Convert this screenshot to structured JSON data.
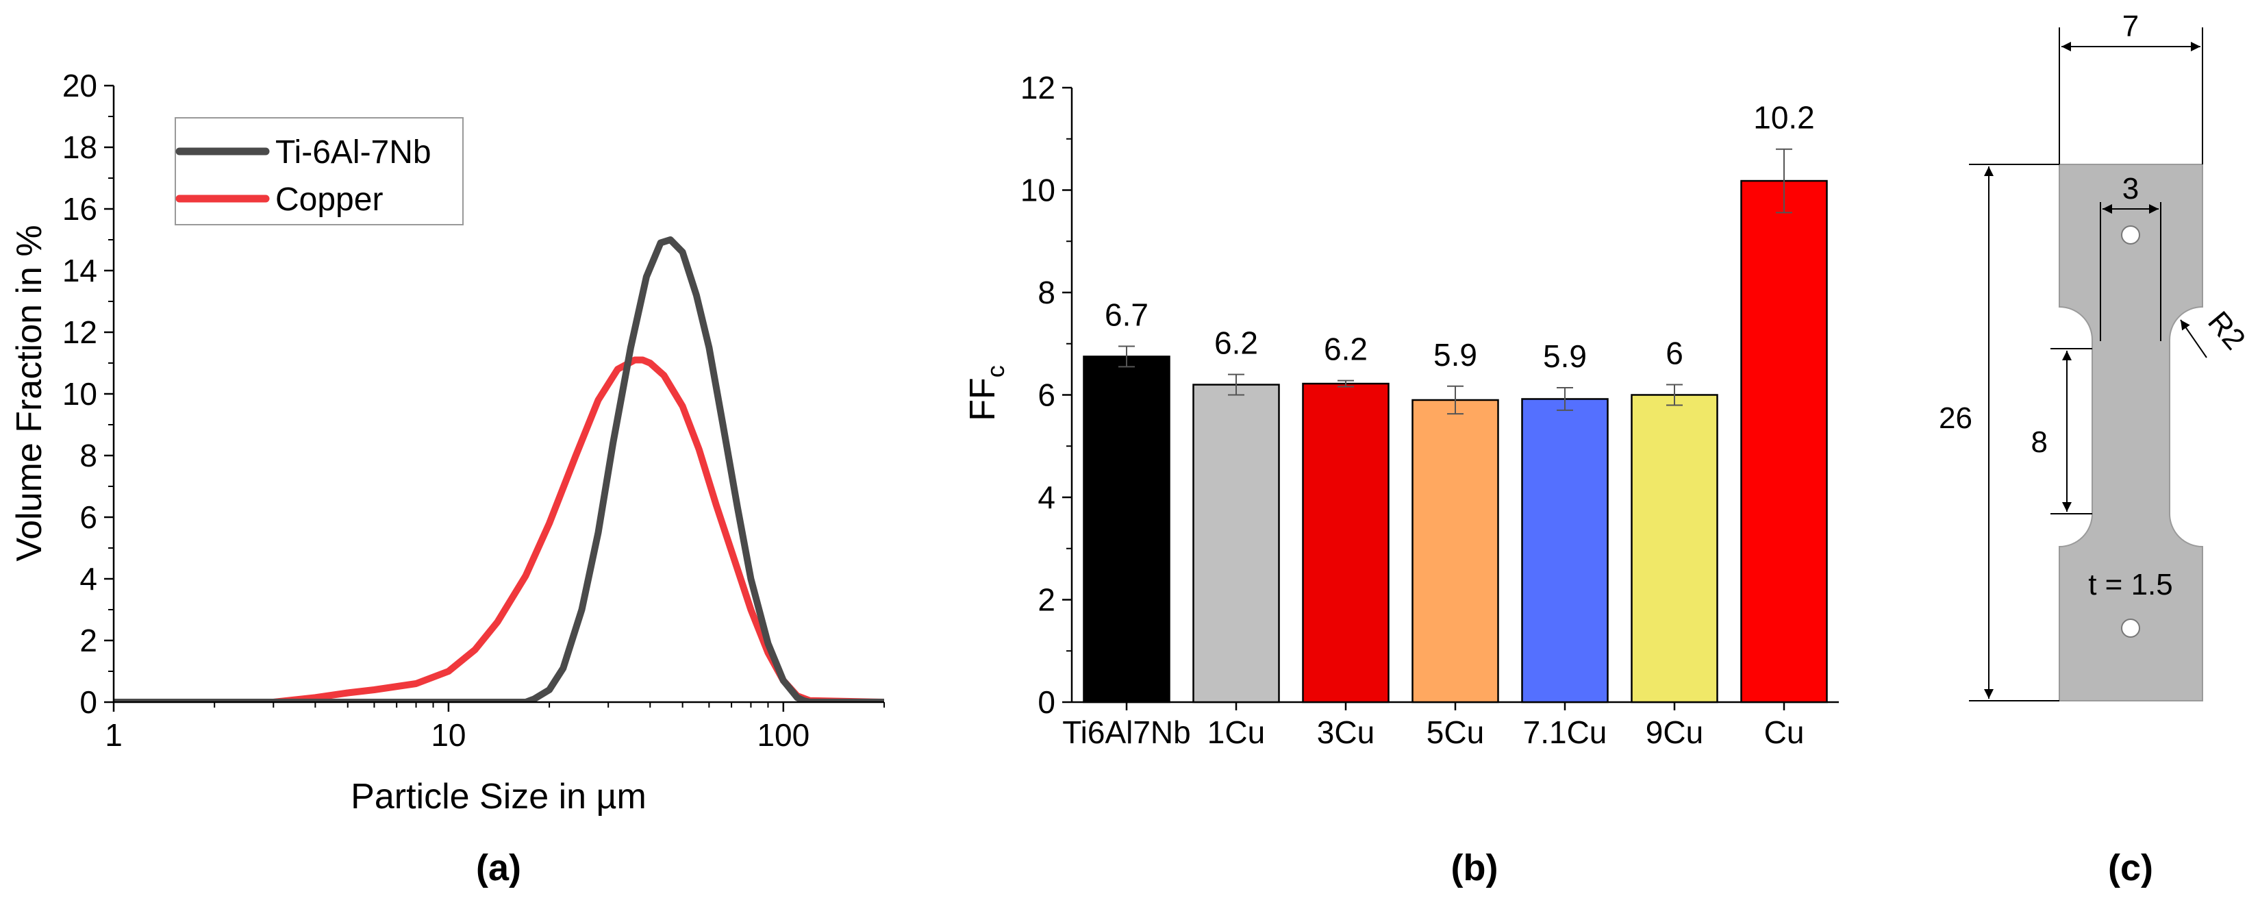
{
  "panels": [
    {
      "label": "(a)"
    },
    {
      "label": "(b)"
    },
    {
      "label": "(c)"
    }
  ],
  "chart_data": [
    {
      "type": "line",
      "xlabel": "Particle Size in µm",
      "ylabel": "Volume Fraction in %",
      "xscale": "log",
      "xlim": [
        1,
        200
      ],
      "ylim": [
        0,
        20
      ],
      "x_ticks": [
        "1",
        "10",
        "100"
      ],
      "y_ticks": [
        "0",
        "2",
        "4",
        "6",
        "8",
        "10",
        "12",
        "14",
        "16",
        "18",
        "20"
      ],
      "legend": "top-left",
      "series": [
        {
          "name": "Ti-6Al-7Nb",
          "color": "#4a4a4a",
          "x": [
            1,
            17,
            18,
            20,
            22,
            25,
            28,
            31,
            35,
            39,
            43,
            46,
            50,
            55,
            60,
            66,
            73,
            80,
            90,
            100,
            110,
            115,
            120,
            200
          ],
          "y": [
            0,
            0,
            0.1,
            0.4,
            1.1,
            3.0,
            5.5,
            8.4,
            11.5,
            13.8,
            14.9,
            15.0,
            14.6,
            13.2,
            11.5,
            9.0,
            6.3,
            4.0,
            1.9,
            0.7,
            0.15,
            0.05,
            0,
            0
          ]
        },
        {
          "name": "Copper",
          "color": "#f0383c",
          "x": [
            1,
            3,
            4,
            5,
            6,
            8,
            10,
            12,
            14,
            17,
            20,
            24,
            28,
            32,
            36,
            38,
            40,
            44,
            50,
            56,
            63,
            70,
            80,
            90,
            100,
            110,
            120,
            200
          ],
          "y": [
            0,
            0,
            0.15,
            0.3,
            0.4,
            0.6,
            1.0,
            1.7,
            2.6,
            4.1,
            5.8,
            8.0,
            9.8,
            10.8,
            11.1,
            11.1,
            11.0,
            10.6,
            9.6,
            8.2,
            6.4,
            4.9,
            3.0,
            1.6,
            0.7,
            0.2,
            0.05,
            0
          ]
        }
      ]
    },
    {
      "type": "bar",
      "xlabel": "",
      "ylabel": "FF",
      "ylabel_sub": "c",
      "ylim": [
        0,
        12
      ],
      "y_ticks": [
        "0",
        "2",
        "4",
        "6",
        "8",
        "10",
        "12"
      ],
      "categories": [
        "Ti6Al7Nb",
        "1Cu",
        "3Cu",
        "5Cu",
        "7.1Cu",
        "9Cu",
        "Cu"
      ],
      "values": [
        6.75,
        6.2,
        6.22,
        5.9,
        5.92,
        6.0,
        10.18
      ],
      "errors": [
        0.2,
        0.2,
        0.06,
        0.27,
        0.22,
        0.2,
        0.62
      ],
      "data_labels": [
        "6.7",
        "6.2",
        "6.2",
        "5.9",
        "5.9",
        "6",
        "10.2"
      ],
      "colors": [
        "#000000",
        "#c0c0c0",
        "#ec0000",
        "#ffa860",
        "#5470ff",
        "#f0e868",
        "#fe0000"
      ]
    }
  ],
  "specimen": {
    "fill": "#b8b8b8",
    "dim_width": "7",
    "dim_hole_spacing": "3",
    "dim_radius": "R2",
    "dim_length": "26",
    "dim_gauge": "8",
    "thickness": "t = 1.5"
  }
}
